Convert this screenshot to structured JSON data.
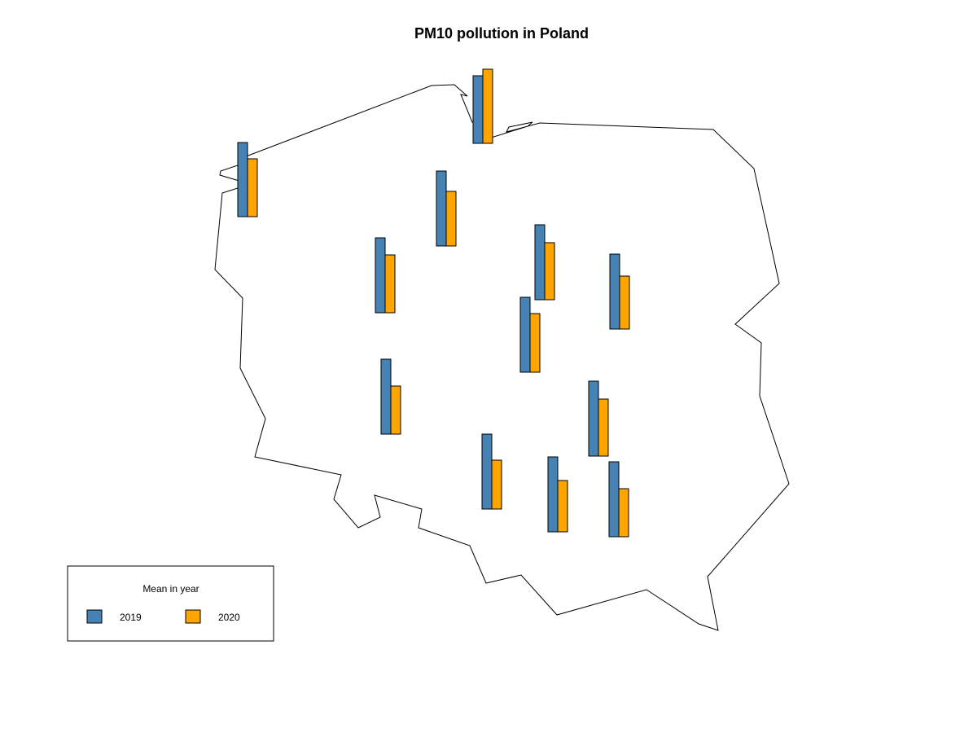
{
  "title": "PM10 pollution in Poland",
  "legend": {
    "title": "Mean in year",
    "items": [
      {
        "label": "2019",
        "color": "#4682B4"
      },
      {
        "label": "2020",
        "color": "#FFA500"
      }
    ]
  },
  "chart_data": {
    "type": "bar",
    "title": "PM10 pollution in Poland",
    "series": [
      {
        "name": "2019",
        "color": "#4682B4"
      },
      {
        "name": "2020",
        "color": "#FFA500"
      }
    ],
    "locations": [
      {
        "values": [
          91,
          71
        ]
      },
      {
        "values": [
          83,
          91
        ]
      },
      {
        "values": [
          92,
          67
        ]
      },
      {
        "values": [
          92,
          71
        ]
      },
      {
        "values": [
          92,
          70
        ]
      },
      {
        "values": [
          92,
          65
        ]
      },
      {
        "values": [
          92,
          72
        ]
      },
      {
        "values": [
          92,
          59
        ]
      },
      {
        "values": [
          92,
          70
        ]
      },
      {
        "values": [
          92,
          60
        ]
      },
      {
        "values": [
          92,
          63
        ]
      },
      {
        "values": [
          92,
          59
        ]
      }
    ]
  }
}
